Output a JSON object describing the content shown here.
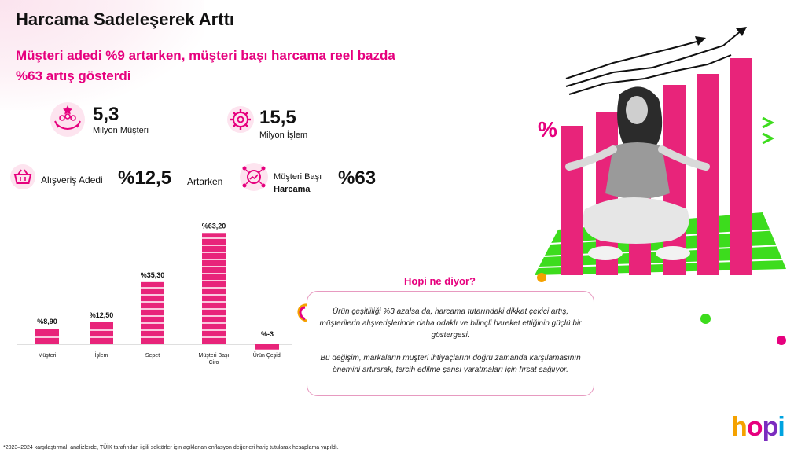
{
  "title": "Harcama Sadeleşerek Arttı",
  "subtitle": "Müşteri adedi %9 artarken, müşteri başı harcama reel bazda %63 artış gösterdi",
  "stats": {
    "customers": {
      "value": "5,3",
      "label": "Milyon Müşteri"
    },
    "transactions": {
      "value": "15,5",
      "label": "Milyon İşlem"
    },
    "basket": {
      "label": "Alışveriş Adedi",
      "value": "%12,5",
      "suffix": "Artarken"
    },
    "per_customer": {
      "label_line1": "Müşteri Başı",
      "label_line2": "Harcama",
      "value": "%63"
    }
  },
  "chart_data": {
    "type": "bar",
    "categories": [
      "Müşteri",
      "İşlem",
      "Sepet",
      "Müşteri Başı Ciro",
      "Ürün Çeşidi"
    ],
    "values": [
      8.9,
      12.5,
      35.3,
      63.2,
      -3
    ],
    "value_labels": [
      "%8,90",
      "%12,50",
      "%35,30",
      "%63,20",
      "%-3"
    ],
    "ylim": [
      -5,
      66
    ],
    "color": "#e8247a",
    "xlabel": "",
    "ylabel": ""
  },
  "callout": {
    "title": "Hopi ne diyor?",
    "paragraph1": "Ürün çeşitliliği %3 azalsa da, harcama tutarındaki dikkat çekici artış, müşterilerin alışverişlerinde daha odaklı ve bilinçli hareket ettiğinin güçlü bir göstergesi.",
    "paragraph2": "Bu değişim, markaların müşteri ihtiyaçlarını doğru zamanda karşılamasının önemini artırarak, tercih edilme şansı yaratmaları için fırsat sağlıyor."
  },
  "illustration": {
    "percent_sign": "%"
  },
  "footnote": "*2023–2024 karşılaştırmalı analizlerde, TÜİK tarafından ilgili sektörler için açıklanan enflasyon değerleri hariç tutularak hesaplama yapıldı.",
  "logo": {
    "letters": [
      "h",
      "o",
      "p",
      "i"
    ],
    "colors": [
      "#f5a200",
      "#e6007e",
      "#7b2cbf",
      "#00a3e0"
    ]
  },
  "colors": {
    "accent": "#e6007e",
    "green": "#3ddc1d"
  }
}
